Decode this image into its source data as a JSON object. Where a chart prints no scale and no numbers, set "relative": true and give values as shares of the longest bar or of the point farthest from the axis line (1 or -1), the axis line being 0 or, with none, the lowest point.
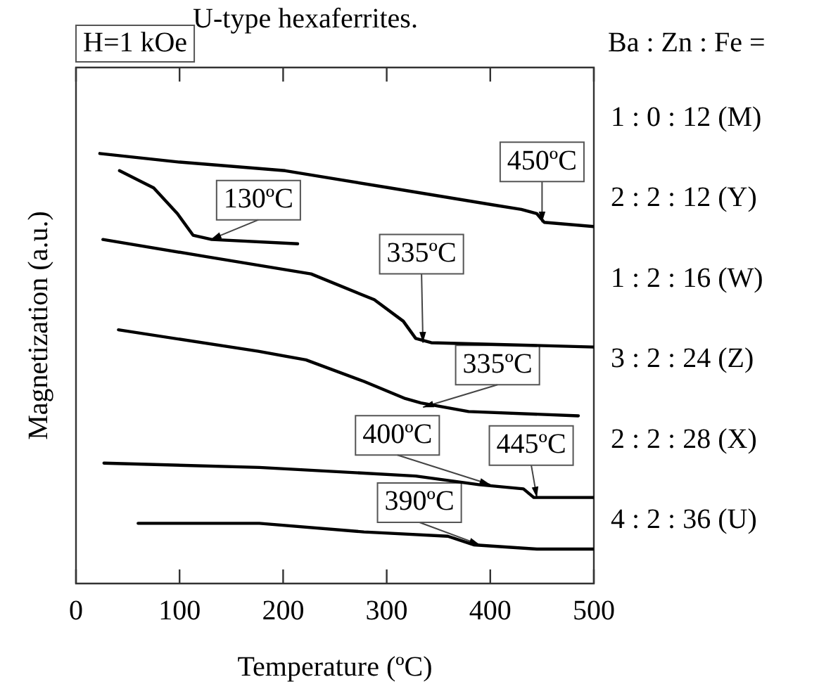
{
  "chart_data": {
    "type": "line",
    "title": "U-type hexaferrites.",
    "xlabel": "Temperature (ºC)",
    "ylabel": "Magnetization (a.u.)",
    "legend_title": "Ba : Zn : Fe =",
    "relative": true,
    "xlim": [
      0,
      500
    ],
    "xticks": [
      0,
      100,
      200,
      300,
      400,
      500
    ],
    "grid": false,
    "marker": "none",
    "line_style": "solid",
    "series": [
      {
        "name": "1 : 0 : 12 (M)",
        "color": "#000000",
        "x": [
          23,
          100,
          202,
          303,
          404,
          430,
          445,
          452,
          500
        ],
        "values": [
          1.0,
          0.98,
          0.96,
          0.92,
          0.88,
          0.87,
          0.86,
          0.84,
          0.83
        ]
      },
      {
        "name": "2 : 2 : 12 (Y)",
        "color": "#000000",
        "x": [
          42,
          75,
          98,
          113,
          131,
          214
        ],
        "values": [
          0.96,
          0.92,
          0.86,
          0.81,
          0.8,
          0.79
        ]
      },
      {
        "name": "1 : 2 : 16 (W)",
        "color": "#000000",
        "x": [
          26,
          126,
          227,
          288,
          316,
          328,
          343,
          500
        ],
        "values": [
          0.8,
          0.76,
          0.72,
          0.66,
          0.61,
          0.57,
          0.56,
          0.55
        ]
      },
      {
        "name": "3 : 2 : 24 (Z)",
        "color": "#000000",
        "x": [
          41,
          176,
          222,
          278,
          318,
          333,
          379,
          485
        ],
        "values": [
          0.59,
          0.54,
          0.52,
          0.47,
          0.43,
          0.42,
          0.4,
          0.39
        ]
      },
      {
        "name": "2 : 2 : 28 (X)",
        "color": "#000000",
        "x": [
          27,
          177,
          328,
          389,
          432,
          442,
          500
        ],
        "values": [
          0.28,
          0.27,
          0.25,
          0.23,
          0.22,
          0.2,
          0.2
        ]
      },
      {
        "name": "4 : 2 : 36 (U)",
        "color": "#000000",
        "x": [
          60,
          177,
          278,
          359,
          384,
          445,
          500
        ],
        "values": [
          0.14,
          0.14,
          0.12,
          0.11,
          0.09,
          0.08,
          0.08
        ]
      }
    ],
    "annotations": [
      "H=1 kOe",
      {
        "text": "450ºC",
        "x": 450,
        "y": 0.84
      },
      {
        "text": "130ºC",
        "x": 130,
        "y": 0.8
      },
      {
        "text": "335ºC",
        "x": 335,
        "y": 0.56
      },
      {
        "text": "335ºC",
        "x": 335,
        "y": 0.41
      },
      {
        "text": "400ºC",
        "x": 400,
        "y": 0.23
      },
      {
        "text": "445ºC",
        "x": 445,
        "y": 0.2
      },
      {
        "text": "390ºC",
        "x": 390,
        "y": 0.09
      }
    ]
  }
}
